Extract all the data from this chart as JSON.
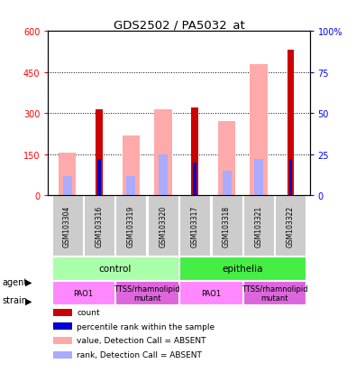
{
  "title": "GDS2502 / PA5032_at",
  "samples": [
    "GSM103304",
    "GSM103316",
    "GSM103319",
    "GSM103320",
    "GSM103317",
    "GSM103318",
    "GSM103321",
    "GSM103322"
  ],
  "count_values": [
    null,
    315,
    null,
    null,
    320,
    null,
    null,
    530
  ],
  "rank_values_pct": [
    null,
    22,
    null,
    null,
    20,
    null,
    null,
    22
  ],
  "absent_value_values": [
    155,
    null,
    220,
    315,
    null,
    270,
    480,
    null
  ],
  "absent_rank_values_pct": [
    12,
    null,
    12,
    25,
    null,
    15,
    22,
    null
  ],
  "ylim_left": [
    0,
    600
  ],
  "ylim_right": [
    0,
    100
  ],
  "yticks_left": [
    0,
    150,
    300,
    450,
    600
  ],
  "yticks_right": [
    0,
    25,
    50,
    75,
    100
  ],
  "yticklabels_left": [
    "0",
    "150",
    "300",
    "450",
    "600"
  ],
  "yticklabels_right": [
    "0",
    "25",
    "50",
    "75",
    "100%"
  ],
  "color_count": "#cc0000",
  "color_rank": "#0000cc",
  "color_absent_value": "#ffaaaa",
  "color_absent_rank": "#aaaaff",
  "agent_groups": [
    {
      "label": "control",
      "start": 0,
      "end": 4,
      "color": "#aaffaa"
    },
    {
      "label": "epithelia",
      "start": 4,
      "end": 8,
      "color": "#44ee44"
    }
  ],
  "strain_groups": [
    {
      "label": "PAO1",
      "start": 0,
      "end": 2,
      "color": "#ff88ff"
    },
    {
      "label": "TTSS/rhamnolipid\nmutant",
      "start": 2,
      "end": 4,
      "color": "#dd66dd"
    },
    {
      "label": "PAO1",
      "start": 4,
      "end": 6,
      "color": "#ff88ff"
    },
    {
      "label": "TTSS/rhamnolipid\nmutant",
      "start": 6,
      "end": 8,
      "color": "#dd66dd"
    }
  ],
  "legend_items": [
    {
      "color": "#cc0000",
      "label": "count"
    },
    {
      "color": "#0000cc",
      "label": "percentile rank within the sample"
    },
    {
      "color": "#ffaaaa",
      "label": "value, Detection Call = ABSENT"
    },
    {
      "color": "#aaaaff",
      "label": "rank, Detection Call = ABSENT"
    }
  ]
}
